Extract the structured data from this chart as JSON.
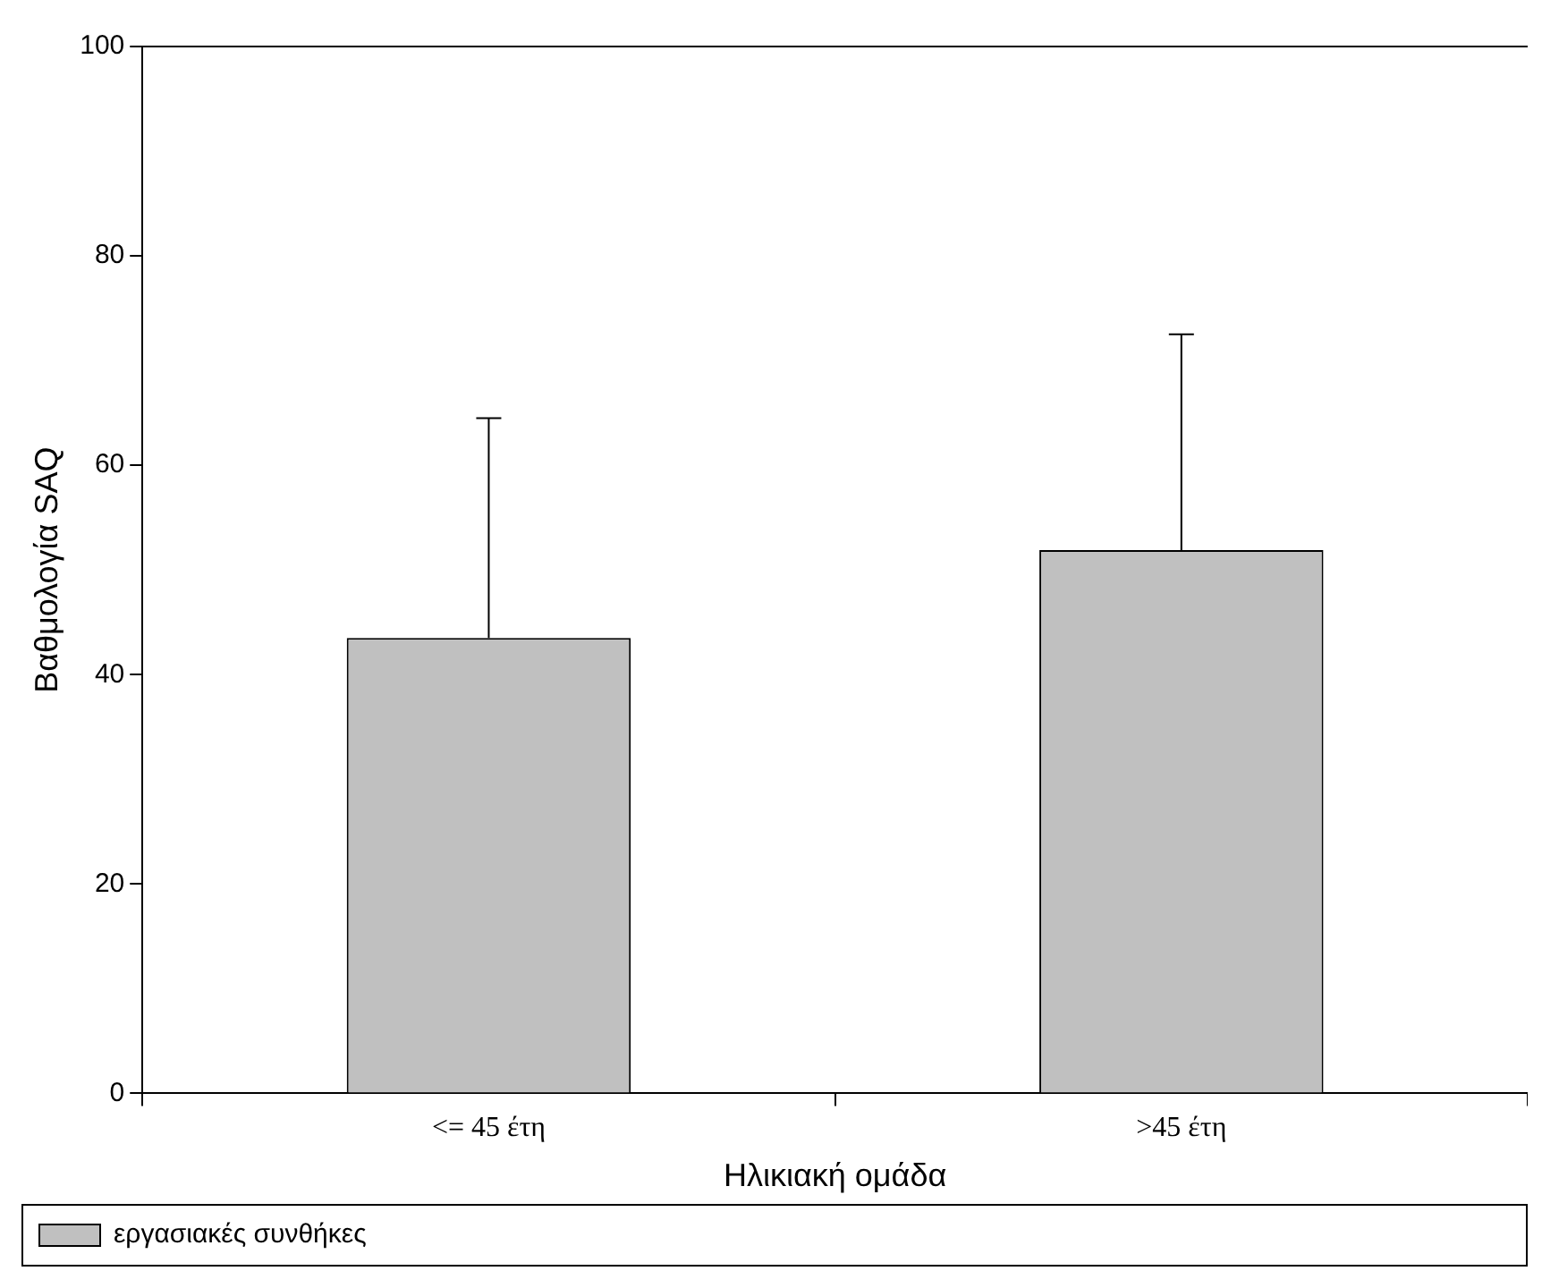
{
  "chart_data": {
    "type": "bar",
    "xlabel": "Ηλικιακή ομάδα",
    "ylabel": "Βαθμολογία SAQ",
    "categories": [
      "<= 45 έτη",
      ">45 έτη"
    ],
    "series": [
      {
        "name": "εργασιακές συνθήκες",
        "color": "#c0c0c0",
        "values": [
          43.5,
          51.9
        ],
        "errors": [
          [
            43.5,
            64.5
          ],
          [
            51.9,
            72.5
          ]
        ]
      }
    ],
    "ylim": [
      0,
      100
    ],
    "yticks": [
      0,
      20,
      40,
      60,
      80,
      100
    ],
    "grid": false,
    "legend": "bottom left"
  }
}
